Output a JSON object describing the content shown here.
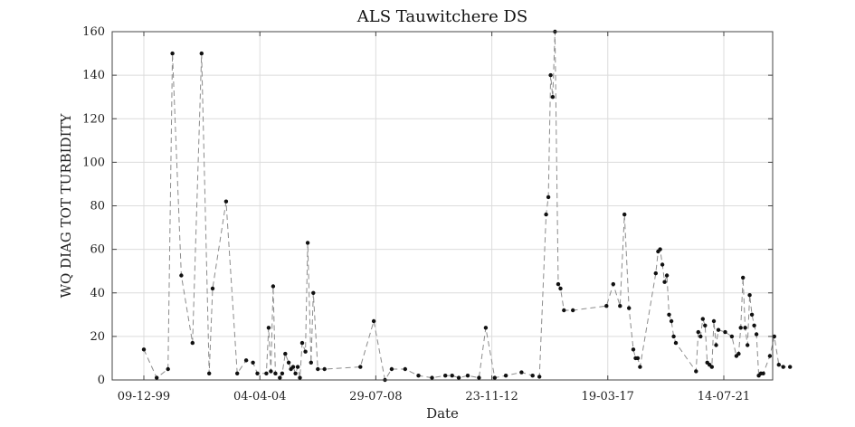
{
  "chart_data": {
    "type": "line",
    "title": "ALS Tauwitchere DS",
    "xlabel": "Date",
    "ylabel": "WQ DIAG TOT TURBIDITY",
    "ylim": [
      0,
      160
    ],
    "xlim": [
      "1998-12-01",
      "2023-12-01"
    ],
    "y_ticks": [
      0,
      20,
      40,
      60,
      80,
      100,
      120,
      140,
      160
    ],
    "x_ticks": [
      {
        "date": "1999-12-09",
        "label": "09-12-99"
      },
      {
        "date": "2004-04-04",
        "label": "04-04-04"
      },
      {
        "date": "2008-07-29",
        "label": "29-07-08"
      },
      {
        "date": "2012-11-23",
        "label": "23-11-12"
      },
      {
        "date": "2017-03-19",
        "label": "19-03-17"
      },
      {
        "date": "2021-07-14",
        "label": "14-07-21"
      }
    ],
    "grid": true,
    "series": [
      {
        "color": "#111111",
        "line_color": "#8c8c8c",
        "points": [
          [
            "1999-12-09",
            14
          ],
          [
            "2000-06-01",
            1
          ],
          [
            "2000-11-01",
            5
          ],
          [
            "2001-01-01",
            150
          ],
          [
            "2001-05-01",
            48
          ],
          [
            "2001-10-01",
            17
          ],
          [
            "2002-02-01",
            150
          ],
          [
            "2002-05-15",
            3
          ],
          [
            "2002-07-01",
            42
          ],
          [
            "2003-01-01",
            82
          ],
          [
            "2003-06-01",
            3
          ],
          [
            "2003-10-01",
            9
          ],
          [
            "2004-01-01",
            8
          ],
          [
            "2004-03-01",
            3
          ],
          [
            "2004-07-01",
            3
          ],
          [
            "2004-08-01",
            24
          ],
          [
            "2004-09-01",
            4
          ],
          [
            "2004-10-01",
            43
          ],
          [
            "2004-11-01",
            3
          ],
          [
            "2005-01-01",
            1
          ],
          [
            "2005-02-01",
            3
          ],
          [
            "2005-03-15",
            12
          ],
          [
            "2005-05-01",
            8
          ],
          [
            "2005-06-01",
            5
          ],
          [
            "2005-07-01",
            6
          ],
          [
            "2005-08-01",
            3
          ],
          [
            "2005-09-01",
            6
          ],
          [
            "2005-10-01",
            1
          ],
          [
            "2005-11-01",
            17
          ],
          [
            "2005-12-15",
            13
          ],
          [
            "2006-01-15",
            63
          ],
          [
            "2006-03-01",
            8
          ],
          [
            "2006-04-01",
            40
          ],
          [
            "2006-06-01",
            5
          ],
          [
            "2006-09-01",
            5
          ],
          [
            "2008-01-01",
            6
          ],
          [
            "2008-07-01",
            27
          ],
          [
            "2008-12-01",
            0
          ],
          [
            "2009-03-01",
            5
          ],
          [
            "2009-09-01",
            5
          ],
          [
            "2010-03-01",
            2
          ],
          [
            "2010-09-01",
            1
          ],
          [
            "2011-03-01",
            2
          ],
          [
            "2011-06-01",
            2
          ],
          [
            "2011-09-01",
            1
          ],
          [
            "2012-01-01",
            2
          ],
          [
            "2012-06-01",
            1
          ],
          [
            "2012-09-01",
            24
          ],
          [
            "2013-01-01",
            1
          ],
          [
            "2013-06-01",
            2
          ],
          [
            "2014-01-01",
            3.5
          ],
          [
            "2014-06-01",
            2
          ],
          [
            "2014-09-01",
            1.5
          ],
          [
            "2014-12-01",
            76
          ],
          [
            "2015-01-01",
            84
          ],
          [
            "2015-02-01",
            140
          ],
          [
            "2015-03-01",
            130
          ],
          [
            "2015-04-01",
            160
          ],
          [
            "2015-05-15",
            44
          ],
          [
            "2015-06-15",
            42
          ],
          [
            "2015-08-01",
            32
          ],
          [
            "2015-12-01",
            32
          ],
          [
            "2017-03-01",
            34
          ],
          [
            "2017-06-01",
            44
          ],
          [
            "2017-09-01",
            34
          ],
          [
            "2017-11-01",
            76
          ],
          [
            "2018-01-01",
            33
          ],
          [
            "2018-03-01",
            14
          ],
          [
            "2018-04-01",
            10
          ],
          [
            "2018-05-01",
            10
          ],
          [
            "2018-06-01",
            6
          ],
          [
            "2019-01-01",
            49
          ],
          [
            "2019-02-01",
            59
          ],
          [
            "2019-03-01",
            60
          ],
          [
            "2019-04-01",
            53
          ],
          [
            "2019-05-01",
            45
          ],
          [
            "2019-06-01",
            48
          ],
          [
            "2019-07-01",
            30
          ],
          [
            "2019-08-01",
            27
          ],
          [
            "2019-09-01",
            20
          ],
          [
            "2019-10-01",
            17
          ],
          [
            "2020-07-01",
            4
          ],
          [
            "2020-08-01",
            22
          ],
          [
            "2020-09-01",
            20
          ],
          [
            "2020-10-01",
            28
          ],
          [
            "2020-11-01",
            25
          ],
          [
            "2020-12-01",
            8
          ],
          [
            "2021-01-01",
            7
          ],
          [
            "2021-02-01",
            6
          ],
          [
            "2021-03-01",
            27
          ],
          [
            "2021-04-01",
            16
          ],
          [
            "2021-05-01",
            23
          ],
          [
            "2021-08-01",
            22
          ],
          [
            "2021-11-01",
            20
          ],
          [
            "2022-01-01",
            11
          ],
          [
            "2022-02-01",
            12
          ],
          [
            "2022-03-01",
            24
          ],
          [
            "2022-04-01",
            47
          ],
          [
            "2022-05-01",
            24
          ],
          [
            "2022-06-01",
            16
          ],
          [
            "2022-07-01",
            39
          ],
          [
            "2022-08-01",
            30
          ],
          [
            "2022-09-01",
            25
          ],
          [
            "2022-10-01",
            21
          ],
          [
            "2022-11-01",
            2
          ],
          [
            "2022-12-01",
            3
          ],
          [
            "2023-01-01",
            3
          ],
          [
            "2023-04-01",
            11
          ],
          [
            "2023-06-01",
            20
          ],
          [
            "2023-08-01",
            7
          ],
          [
            "2023-10-01",
            6
          ],
          [
            "2024-01-01",
            6
          ]
        ]
      }
    ]
  }
}
